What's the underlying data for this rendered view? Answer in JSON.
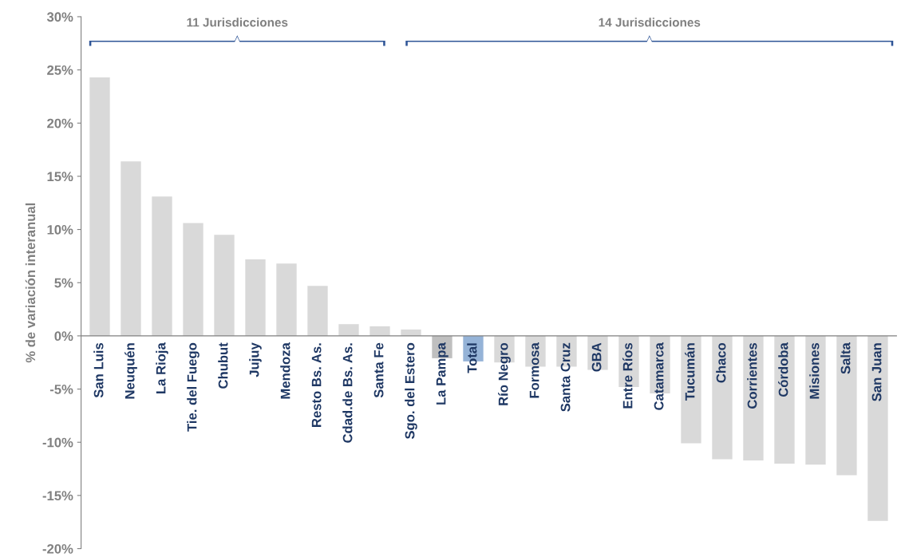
{
  "chart_data": {
    "type": "bar",
    "ylabel": "% de variación interanual",
    "categories": [
      "San Luis",
      "Neuquén",
      "La Rioja",
      "Tie. del Fuego",
      "Chubut",
      "Jujuy",
      "Mendoza",
      "Resto Bs. As.",
      "Cdad.de Bs. As.",
      "Santa Fe",
      "Sgo. del Estero",
      "La Pampa",
      "Total",
      "Río Negro",
      "Formosa",
      "Santa Cruz",
      "GBA",
      "Entre Ríos",
      "Catamarca",
      "Tucumán",
      "Chaco",
      "Corrientes",
      "Córdoba",
      "Misiones",
      "Salta",
      "San Juan"
    ],
    "values": [
      24.3,
      16.4,
      13.1,
      10.6,
      9.5,
      7.2,
      6.8,
      4.7,
      1.1,
      0.9,
      0.6,
      -2.1,
      -2.4,
      -2.5,
      -2.9,
      -2.9,
      -3.2,
      -4.8,
      -5.4,
      -10.1,
      -11.6,
      -11.7,
      -12.0,
      -12.1,
      -13.1,
      -17.4
    ],
    "colors": [
      "#d9d9d9",
      "#d9d9d9",
      "#d9d9d9",
      "#d9d9d9",
      "#d9d9d9",
      "#d9d9d9",
      "#d9d9d9",
      "#d9d9d9",
      "#d9d9d9",
      "#d9d9d9",
      "#d9d9d9",
      "#bfbfbf",
      "#95b3d7",
      "#d9d9d9",
      "#d9d9d9",
      "#d9d9d9",
      "#d9d9d9",
      "#d9d9d9",
      "#d9d9d9",
      "#d9d9d9",
      "#d9d9d9",
      "#d9d9d9",
      "#d9d9d9",
      "#d9d9d9",
      "#d9d9d9",
      "#d9d9d9"
    ],
    "ylim": [
      -20,
      30
    ],
    "yticks": [
      {
        "value": -20,
        "label": "-20%"
      },
      {
        "value": -15,
        "label": "-15%"
      },
      {
        "value": -10,
        "label": "-10%"
      },
      {
        "value": -5,
        "label": "-5%"
      },
      {
        "value": 0,
        "label": "0%"
      },
      {
        "value": 5,
        "label": "5%"
      },
      {
        "value": 10,
        "label": "10%"
      },
      {
        "value": 15,
        "label": "15%"
      },
      {
        "value": 20,
        "label": "20%"
      },
      {
        "value": 25,
        "label": "25%"
      },
      {
        "value": 30,
        "label": "30%"
      }
    ],
    "annotations": [
      "11 Jurisdicciones",
      "14 Jurisdicciones"
    ],
    "grid": false
  }
}
